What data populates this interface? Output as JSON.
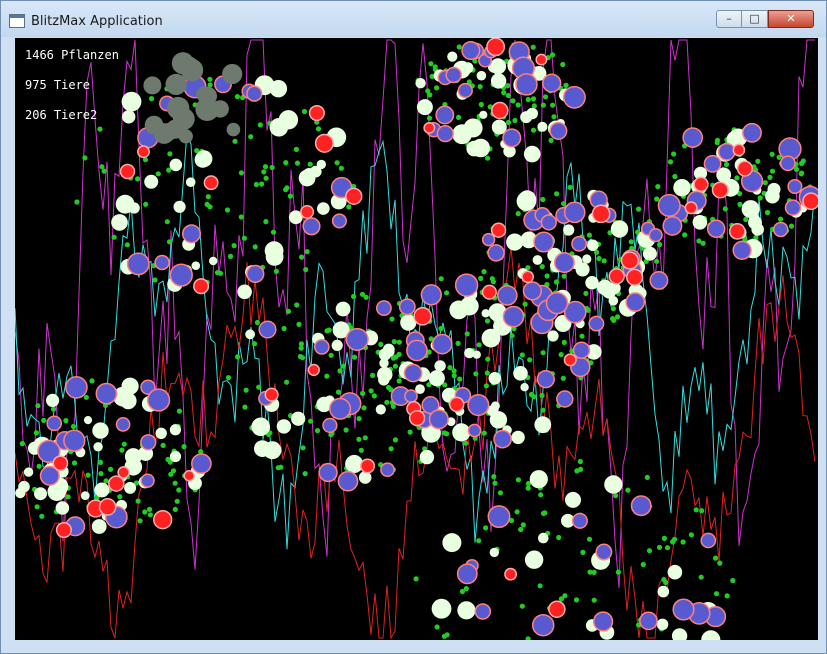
{
  "window": {
    "title": "BlitzMax Application",
    "icon": "app-window-icon",
    "controls": {
      "minimize_glyph": "–",
      "maximize_glyph": "□",
      "close_glyph": "✕"
    }
  },
  "hud": {
    "plants_label": "1466 Pflanzen",
    "animals_label": "975 Tiere",
    "animals2_label": "206 Tiere2"
  },
  "colors": {
    "background": "#000000",
    "plant_small": "#22cc22",
    "plant_large": "#e8ffe0",
    "herbivore": "#5a5ad0",
    "herbivore_outline": "#ff8080",
    "predator": "#ff2222",
    "graph_plants": "#cc33cc",
    "graph_animals": "#33dddd",
    "graph_animals2": "#dd2222"
  }
}
